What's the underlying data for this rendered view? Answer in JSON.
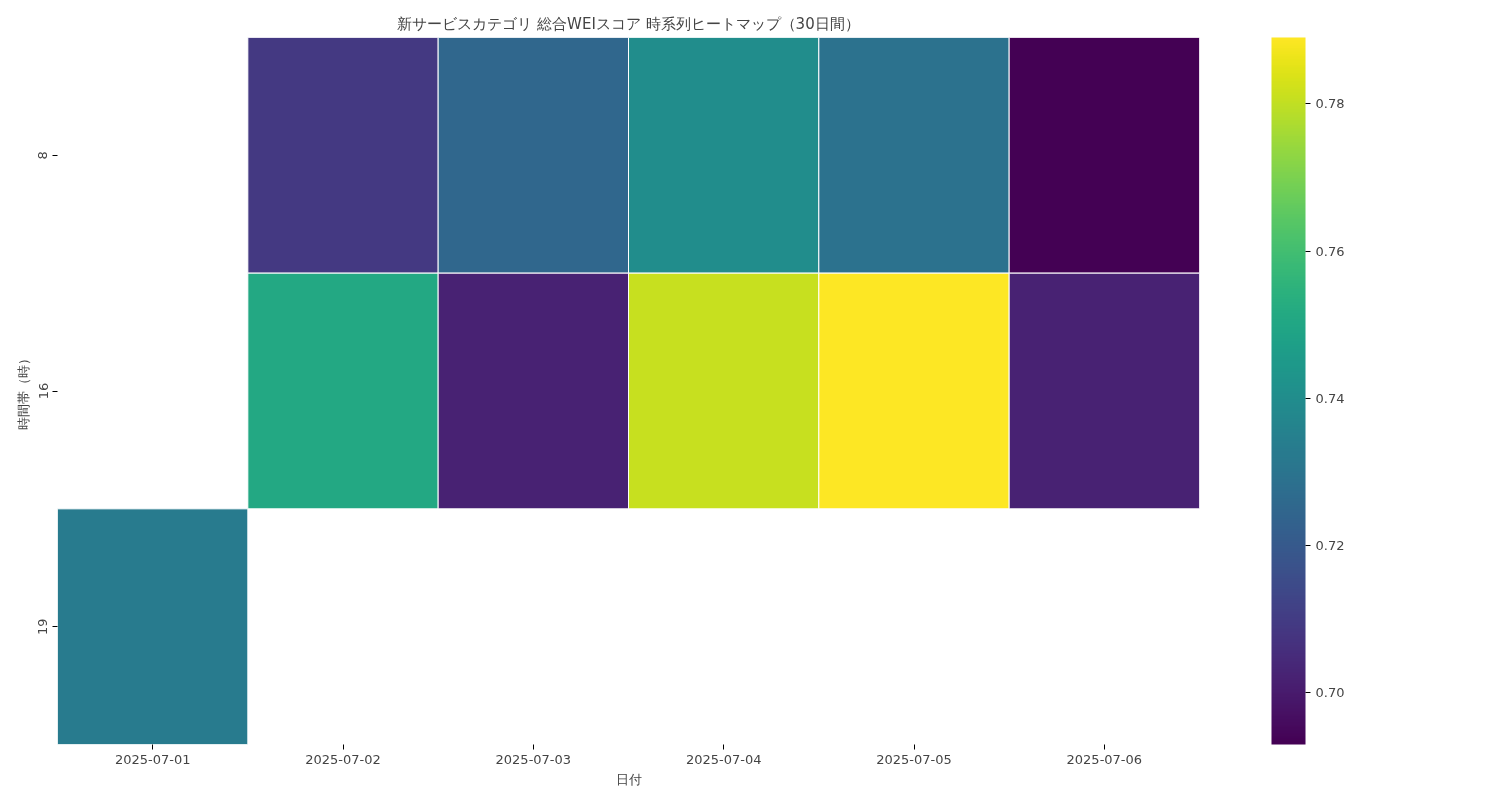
{
  "chart_data": {
    "type": "heatmap",
    "title": "新サービスカテゴリ 総合WEIスコア 時系列ヒートマップ（30日間）",
    "xlabel": "日付",
    "ylabel": "時間帯（時）",
    "categories": [
      "2025-07-01",
      "2025-07-02",
      "2025-07-03",
      "2025-07-04",
      "2025-07-05",
      "2025-07-06"
    ],
    "y_categories": [
      "8",
      "16",
      "19"
    ],
    "cells": [
      [
        null,
        0.709,
        0.725,
        0.74,
        0.729,
        0.693
      ],
      [
        null,
        0.751,
        0.702,
        0.781,
        0.789,
        0.702
      ],
      [
        0.733,
        null,
        null,
        null,
        null,
        null
      ]
    ],
    "clim": [
      0.693,
      0.789
    ],
    "cticks": [
      {
        "value": 0.7,
        "label": "0.70"
      },
      0.72,
      0.74,
      0.76,
      0.78
    ]
  }
}
